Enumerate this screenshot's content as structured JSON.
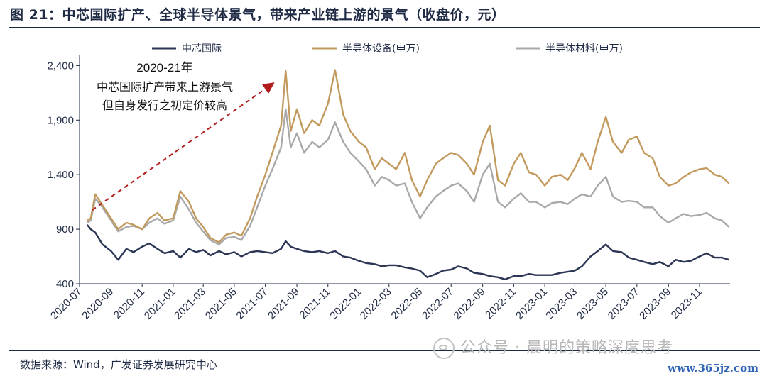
{
  "header": {
    "title": "图 21：中芯国际扩产、全球半导体景气，带来产业链上游的景气（收盘价，元）"
  },
  "footer": {
    "source": "数据来源：Wind，广发证券发展研究中心",
    "watermark": "公众号 · 晨明的策略深度思考",
    "site": "www.365jz.com"
  },
  "colors": {
    "smic": "#2b3554",
    "equipment": "#c29a5e",
    "materials": "#a9a9a9",
    "arrow": "#b01c1c"
  },
  "chart_data": {
    "type": "line",
    "title": "图 21：中芯国际扩产、全球半导体景气，带来产业链上游的景气（收盘价，元）",
    "xlabel": "",
    "ylabel": "",
    "ylim": [
      400,
      2500
    ],
    "yticks": [
      400,
      900,
      1400,
      1900,
      2400
    ],
    "ytick_labels": [
      "400",
      "900",
      "1,400",
      "1,900",
      "2,400"
    ],
    "xticks": [
      "2020-07",
      "2020-09",
      "2020-11",
      "2021-01",
      "2021-03",
      "2021-05",
      "2021-07",
      "2021-09",
      "2021-11",
      "2022-01",
      "2022-03",
      "2022-05",
      "2022-07",
      "2022-09",
      "2022-11",
      "2023-01",
      "2023-03",
      "2023-05",
      "2023-07",
      "2023-09",
      "2023-11"
    ],
    "xlim": [
      "2020-07-01",
      "2023-12-31"
    ],
    "legend": "top",
    "grid": false,
    "series": [
      {
        "name": "中芯国际",
        "color": "#2b3554",
        "x": [
          "2020-07-16",
          "2020-07-23",
          "2020-08-01",
          "2020-08-15",
          "2020-09-01",
          "2020-09-15",
          "2020-10-01",
          "2020-10-15",
          "2020-11-01",
          "2020-11-15",
          "2020-12-01",
          "2020-12-15",
          "2021-01-01",
          "2021-01-15",
          "2021-02-01",
          "2021-02-15",
          "2021-03-01",
          "2021-03-15",
          "2021-04-01",
          "2021-04-15",
          "2021-05-01",
          "2021-05-15",
          "2021-06-01",
          "2021-06-15",
          "2021-07-01",
          "2021-07-15",
          "2021-08-01",
          "2021-08-10",
          "2021-08-20",
          "2021-09-01",
          "2021-09-15",
          "2021-10-01",
          "2021-10-15",
          "2021-11-01",
          "2021-11-15",
          "2021-12-01",
          "2021-12-15",
          "2022-01-01",
          "2022-01-15",
          "2022-02-01",
          "2022-02-15",
          "2022-03-01",
          "2022-03-15",
          "2022-04-01",
          "2022-04-15",
          "2022-05-01",
          "2022-05-15",
          "2022-06-01",
          "2022-06-15",
          "2022-07-01",
          "2022-07-15",
          "2022-08-01",
          "2022-08-15",
          "2022-09-01",
          "2022-09-15",
          "2022-10-01",
          "2022-10-15",
          "2022-11-01",
          "2022-11-15",
          "2022-12-01",
          "2022-12-15",
          "2023-01-01",
          "2023-01-15",
          "2023-02-01",
          "2023-02-15",
          "2023-03-01",
          "2023-03-15",
          "2023-04-01",
          "2023-04-15",
          "2023-05-01",
          "2023-05-15",
          "2023-06-01",
          "2023-06-15",
          "2023-07-01",
          "2023-07-15",
          "2023-08-01",
          "2023-08-15",
          "2023-09-01",
          "2023-09-15",
          "2023-10-01",
          "2023-10-15",
          "2023-11-01",
          "2023-11-15",
          "2023-12-01",
          "2023-12-15",
          "2023-12-29"
        ],
        "y": [
          940,
          900,
          870,
          760,
          700,
          620,
          720,
          690,
          740,
          770,
          720,
          680,
          700,
          640,
          720,
          690,
          710,
          660,
          700,
          670,
          690,
          650,
          690,
          700,
          690,
          680,
          720,
          790,
          740,
          720,
          700,
          690,
          700,
          680,
          700,
          650,
          640,
          610,
          590,
          580,
          560,
          570,
          570,
          550,
          540,
          520,
          460,
          490,
          520,
          530,
          560,
          540,
          500,
          490,
          470,
          460,
          440,
          470,
          470,
          490,
          480,
          480,
          480,
          500,
          510,
          520,
          560,
          650,
          700,
          760,
          700,
          690,
          640,
          620,
          600,
          580,
          600,
          560,
          620,
          600,
          610,
          650,
          680,
          640,
          640,
          620
        ]
      },
      {
        "name": "半导体设备(申万)",
        "color": "#c29a5e",
        "x": [
          "2020-07-16",
          "2020-07-23",
          "2020-08-01",
          "2020-08-15",
          "2020-09-01",
          "2020-09-15",
          "2020-10-01",
          "2020-10-15",
          "2020-11-01",
          "2020-11-15",
          "2020-12-01",
          "2020-12-15",
          "2021-01-01",
          "2021-01-15",
          "2021-02-01",
          "2021-02-15",
          "2021-03-01",
          "2021-03-15",
          "2021-04-01",
          "2021-04-15",
          "2021-05-01",
          "2021-05-15",
          "2021-06-01",
          "2021-06-15",
          "2021-07-01",
          "2021-07-15",
          "2021-08-01",
          "2021-08-10",
          "2021-08-20",
          "2021-09-01",
          "2021-09-15",
          "2021-10-01",
          "2021-10-15",
          "2021-11-01",
          "2021-11-15",
          "2021-12-01",
          "2021-12-15",
          "2022-01-01",
          "2022-01-15",
          "2022-02-01",
          "2022-02-15",
          "2022-03-01",
          "2022-03-15",
          "2022-04-01",
          "2022-04-15",
          "2022-05-01",
          "2022-05-15",
          "2022-06-01",
          "2022-06-15",
          "2022-07-01",
          "2022-07-15",
          "2022-08-01",
          "2022-08-15",
          "2022-09-01",
          "2022-09-15",
          "2022-10-01",
          "2022-10-15",
          "2022-11-01",
          "2022-11-15",
          "2022-12-01",
          "2022-12-15",
          "2023-01-01",
          "2023-01-15",
          "2023-02-01",
          "2023-02-15",
          "2023-03-01",
          "2023-03-15",
          "2023-04-01",
          "2023-04-15",
          "2023-05-01",
          "2023-05-15",
          "2023-06-01",
          "2023-06-15",
          "2023-07-01",
          "2023-07-15",
          "2023-08-01",
          "2023-08-15",
          "2023-09-01",
          "2023-09-15",
          "2023-10-01",
          "2023-10-15",
          "2023-11-01",
          "2023-11-15",
          "2023-12-01",
          "2023-12-15",
          "2023-12-29"
        ],
        "y": [
          980,
          1000,
          1220,
          1120,
          1000,
          900,
          960,
          940,
          900,
          1000,
          1050,
          980,
          1000,
          1250,
          1150,
          1000,
          920,
          820,
          780,
          850,
          870,
          840,
          1000,
          1200,
          1400,
          1600,
          1850,
          2350,
          1800,
          2000,
          1780,
          1900,
          1850,
          2050,
          2360,
          1950,
          1800,
          1700,
          1650,
          1450,
          1550,
          1500,
          1450,
          1600,
          1350,
          1200,
          1350,
          1500,
          1550,
          1600,
          1580,
          1500,
          1400,
          1700,
          1850,
          1350,
          1300,
          1500,
          1600,
          1420,
          1400,
          1300,
          1380,
          1400,
          1350,
          1460,
          1600,
          1450,
          1700,
          1930,
          1700,
          1600,
          1720,
          1750,
          1600,
          1550,
          1380,
          1300,
          1320,
          1380,
          1420,
          1450,
          1460,
          1400,
          1380,
          1320
        ]
      },
      {
        "name": "半导体材料(申万)",
        "color": "#a9a9a9",
        "x": [
          "2020-07-16",
          "2020-07-23",
          "2020-08-01",
          "2020-08-15",
          "2020-09-01",
          "2020-09-15",
          "2020-10-01",
          "2020-10-15",
          "2020-11-01",
          "2020-11-15",
          "2020-12-01",
          "2020-12-15",
          "2021-01-01",
          "2021-01-15",
          "2021-02-01",
          "2021-02-15",
          "2021-03-01",
          "2021-03-15",
          "2021-04-01",
          "2021-04-15",
          "2021-05-01",
          "2021-05-15",
          "2021-06-01",
          "2021-06-15",
          "2021-07-01",
          "2021-07-15",
          "2021-08-01",
          "2021-08-10",
          "2021-08-20",
          "2021-09-01",
          "2021-09-15",
          "2021-10-01",
          "2021-10-15",
          "2021-11-01",
          "2021-11-15",
          "2021-12-01",
          "2021-12-15",
          "2022-01-01",
          "2022-01-15",
          "2022-02-01",
          "2022-02-15",
          "2022-03-01",
          "2022-03-15",
          "2022-04-01",
          "2022-04-15",
          "2022-05-01",
          "2022-05-15",
          "2022-06-01",
          "2022-06-15",
          "2022-07-01",
          "2022-07-15",
          "2022-08-01",
          "2022-08-15",
          "2022-09-01",
          "2022-09-15",
          "2022-10-01",
          "2022-10-15",
          "2022-11-01",
          "2022-11-15",
          "2022-12-01",
          "2022-12-15",
          "2023-01-01",
          "2023-01-15",
          "2023-02-01",
          "2023-02-15",
          "2023-03-01",
          "2023-03-15",
          "2023-04-01",
          "2023-04-15",
          "2023-05-01",
          "2023-05-15",
          "2023-06-01",
          "2023-06-15",
          "2023-07-01",
          "2023-07-15",
          "2023-08-01",
          "2023-08-15",
          "2023-09-01",
          "2023-09-15",
          "2023-10-01",
          "2023-10-15",
          "2023-11-01",
          "2023-11-15",
          "2023-12-01",
          "2023-12-15",
          "2023-12-29"
        ],
        "y": [
          960,
          980,
          1180,
          1100,
          980,
          880,
          920,
          930,
          900,
          960,
          1000,
          950,
          980,
          1200,
          1080,
          960,
          880,
          800,
          760,
          820,
          830,
          800,
          930,
          1100,
          1300,
          1450,
          1650,
          2000,
          1650,
          1780,
          1600,
          1700,
          1650,
          1720,
          1880,
          1700,
          1600,
          1520,
          1450,
          1300,
          1380,
          1350,
          1300,
          1320,
          1150,
          1000,
          1100,
          1200,
          1250,
          1300,
          1320,
          1250,
          1150,
          1400,
          1500,
          1150,
          1100,
          1180,
          1230,
          1150,
          1150,
          1100,
          1140,
          1150,
          1130,
          1180,
          1220,
          1200,
          1300,
          1380,
          1200,
          1150,
          1160,
          1150,
          1100,
          1100,
          1020,
          960,
          1000,
          1040,
          1020,
          1030,
          1050,
          1000,
          980,
          920
        ]
      }
    ],
    "annotations": [
      {
        "lines": [
          "2020-21年",
          "中芯国际扩产带来上游景气",
          "但自身发行之初定价较高"
        ]
      }
    ]
  }
}
